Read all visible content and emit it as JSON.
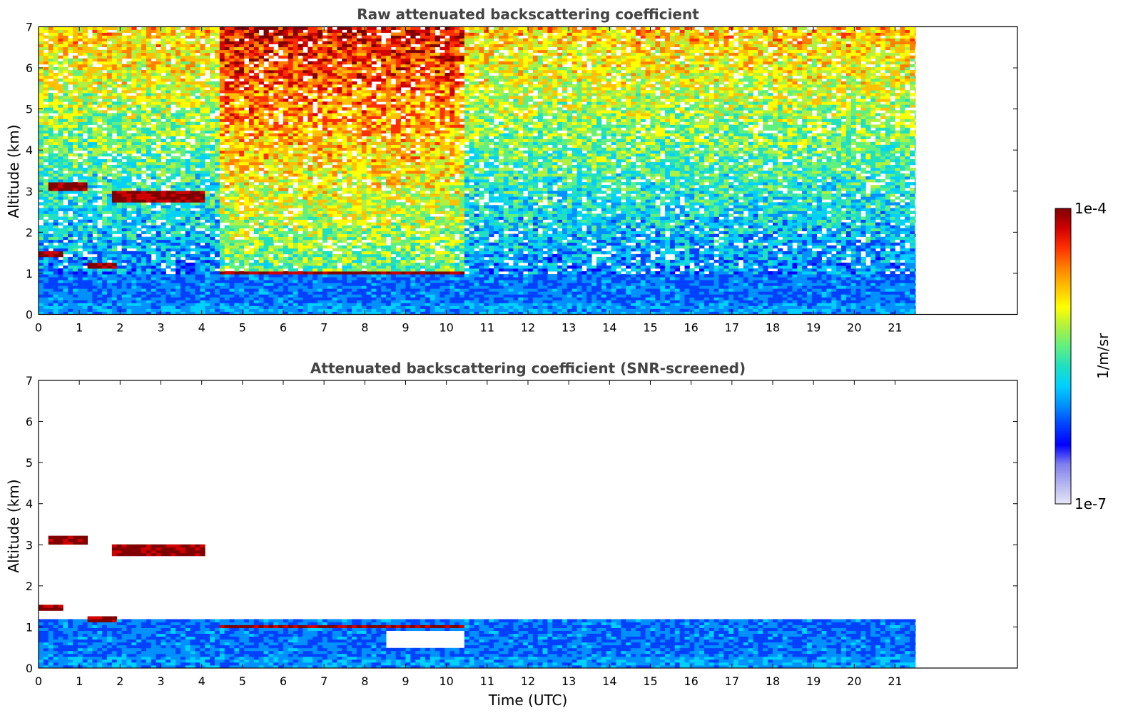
{
  "chart_data": [
    {
      "type": "heatmap",
      "title": "Raw attenuated backscattering coefficient",
      "xlabel": "",
      "ylabel": "Altitude (km)",
      "xlim": [
        0,
        24
      ],
      "ylim": [
        0,
        7
      ],
      "xticks": [
        "0",
        "1",
        "2",
        "3",
        "4",
        "5",
        "6",
        "7",
        "8",
        "9",
        "10",
        "11",
        "12",
        "13",
        "14",
        "15",
        "16",
        "17",
        "18",
        "19",
        "20",
        "21"
      ],
      "yticks": [
        "0",
        "1",
        "2",
        "3",
        "4",
        "5",
        "6",
        "7"
      ],
      "data_extent_time": [
        0,
        21.5
      ],
      "features": [
        {
          "kind": "cloud_layer",
          "time": [
            0.0,
            0.6
          ],
          "altitude_km": 1.45
        },
        {
          "kind": "cloud_layer",
          "time": [
            1.2,
            1.9
          ],
          "altitude_km": 1.18
        },
        {
          "kind": "cloud_layer",
          "time": [
            4.5,
            10.4
          ],
          "altitude_km": [
            0.95,
            1.05
          ]
        },
        {
          "kind": "cloud_layer",
          "time": [
            0.3,
            1.2
          ],
          "altitude_km": [
            3.0,
            3.2
          ]
        },
        {
          "kind": "cloud_layer",
          "time": [
            1.8,
            4.1
          ],
          "altitude_km": [
            2.7,
            3.0
          ]
        },
        {
          "kind": "boundary_layer",
          "time": [
            0,
            21.5
          ],
          "altitude_km": [
            0,
            1.0
          ]
        },
        {
          "kind": "high_noise_period",
          "time": [
            4.5,
            10.4
          ],
          "altitude_km": [
            1.5,
            7.0
          ]
        }
      ]
    },
    {
      "type": "heatmap",
      "title": "Attenuated backscattering coefficient (SNR-screened)",
      "xlabel": "Time (UTC)",
      "ylabel": "Altitude (km)",
      "xlim": [
        0,
        24
      ],
      "ylim": [
        0,
        7
      ],
      "xticks": [
        "0",
        "1",
        "2",
        "3",
        "4",
        "5",
        "6",
        "7",
        "8",
        "9",
        "10",
        "11",
        "12",
        "13",
        "14",
        "15",
        "16",
        "17",
        "18",
        "19",
        "20",
        "21"
      ],
      "yticks": [
        "0",
        "1",
        "2",
        "3",
        "4",
        "5",
        "6",
        "7"
      ],
      "data_extent_time": [
        0,
        21.5
      ],
      "features": [
        {
          "kind": "cloud_layer",
          "time": [
            0.0,
            0.6
          ],
          "altitude_km": 1.45
        },
        {
          "kind": "cloud_layer",
          "time": [
            1.2,
            1.9
          ],
          "altitude_km": 1.18
        },
        {
          "kind": "cloud_layer",
          "time": [
            4.5,
            10.4
          ],
          "altitude_km": [
            0.95,
            1.05
          ]
        },
        {
          "kind": "cloud_layer",
          "time": [
            0.3,
            1.2
          ],
          "altitude_km": [
            3.0,
            3.2
          ]
        },
        {
          "kind": "cloud_layer",
          "time": [
            1.8,
            4.1
          ],
          "altitude_km": [
            2.7,
            3.0
          ]
        },
        {
          "kind": "boundary_layer",
          "time": [
            0,
            21.5
          ],
          "altitude_km": [
            0,
            1.2
          ]
        },
        {
          "kind": "screened_gap",
          "time": [
            8.5,
            10.4
          ],
          "altitude_km": [
            0.5,
            0.9
          ]
        }
      ]
    }
  ],
  "colorbar": {
    "label": "1/m/sr",
    "max_label": "1e-4",
    "min_label": "1e-7",
    "scale": "log",
    "colormap": [
      "#e6e6f5",
      "#b4b4f0",
      "#8080ee",
      "#0000ff",
      "#0040ff",
      "#0090ff",
      "#00d0ff",
      "#20e0c0",
      "#60f080",
      "#b0f040",
      "#ffff00",
      "#ffc000",
      "#ff8000",
      "#ff3000",
      "#d00000",
      "#800000"
    ]
  }
}
